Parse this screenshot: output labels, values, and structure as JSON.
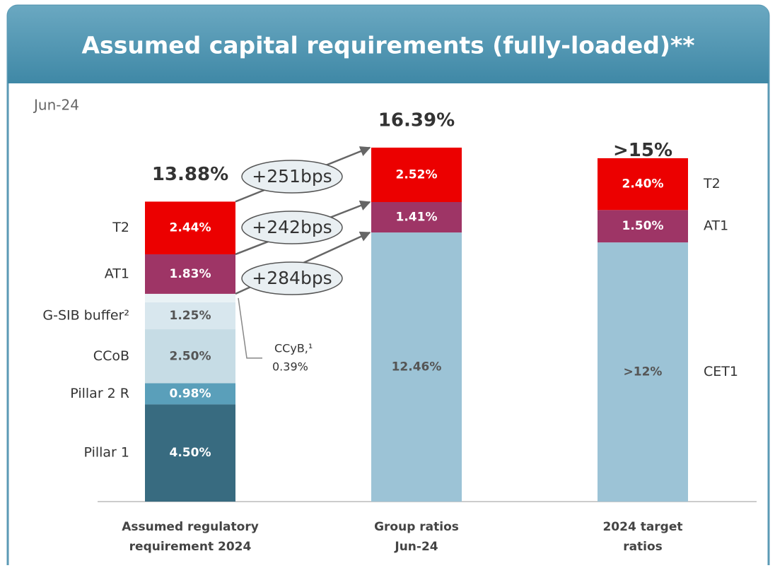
{
  "chart_data": {
    "type": "stacked_bar",
    "title": "Assumed capital requirements (fully-loaded)**",
    "subtitle": "Jun-24",
    "categories": [
      [
        "Assumed regulatory",
        "requirement 2024"
      ],
      [
        "Group ratios",
        "Jun-24"
      ],
      [
        "2024 target",
        "ratios"
      ]
    ],
    "series": [
      {
        "name": "Pillar 1",
        "color": "#386b80",
        "values": [
          4.5,
          null,
          null
        ],
        "value_labels": [
          "4.50%",
          null,
          null
        ]
      },
      {
        "name": "Pillar 2 R",
        "color": "#5a9fba",
        "values": [
          0.98,
          null,
          null
        ],
        "value_labels": [
          "0.98%",
          null,
          null
        ]
      },
      {
        "name": "CCoB",
        "color": "#c6dce5",
        "values": [
          2.5,
          null,
          null
        ],
        "value_labels": [
          "2.50%",
          null,
          null
        ]
      },
      {
        "name": "G-SIB buffer²",
        "color": "#d8e7ee",
        "values": [
          1.25,
          null,
          null
        ],
        "value_labels": [
          "1.25%",
          null,
          null
        ]
      },
      {
        "name": "CCyB,¹",
        "color": "#e9f2f5",
        "values": [
          0.39,
          null,
          null
        ],
        "value_labels": [
          "0.39%",
          null,
          null
        ]
      },
      {
        "name": "CET1",
        "color": "#9cc3d6",
        "values": [
          null,
          12.46,
          12
        ],
        "value_labels": [
          null,
          "12.46%",
          ">12%"
        ]
      },
      {
        "name": "AT1",
        "color": "#9e3566",
        "values": [
          1.83,
          1.41,
          1.5
        ],
        "value_labels": [
          "1.83%",
          "1.41%",
          "1.50%"
        ]
      },
      {
        "name": "T2",
        "color": "#ec0000",
        "values": [
          2.44,
          2.52,
          2.4
        ],
        "value_labels": [
          "2.44%",
          "2.52%",
          "2.40%"
        ]
      }
    ],
    "totals": {
      "values": [
        13.88,
        16.39,
        15
      ],
      "value_labels": [
        "13.88%",
        "16.39%",
        ">15%"
      ]
    },
    "annotations": [
      "+251bps",
      "+242bps",
      "+284bps"
    ]
  }
}
